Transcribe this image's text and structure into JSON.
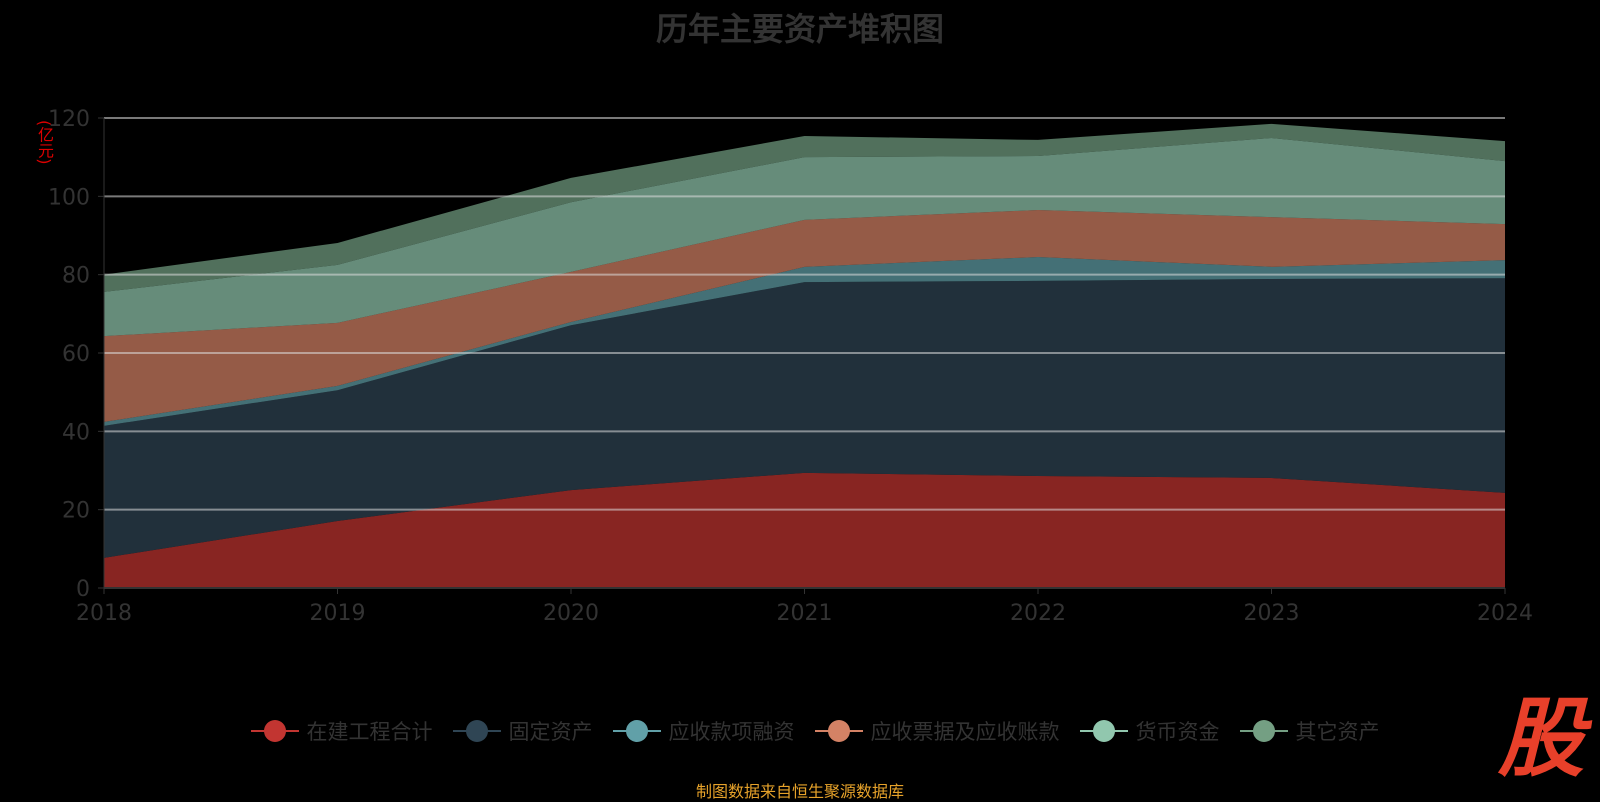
{
  "chart_data": {
    "type": "area",
    "stacked": true,
    "title": "历年主要资产堆积图",
    "ylabel": "(亿元)",
    "xlabel": "",
    "categories": [
      "2018",
      "2019",
      "2020",
      "2021",
      "2022",
      "2023",
      "2024"
    ],
    "ylim": [
      0,
      120
    ],
    "yticks": [
      "0",
      "20",
      "40",
      "60",
      "80",
      "100",
      "120"
    ],
    "grid": true,
    "legend_position": "bottom",
    "series": [
      {
        "name": "在建工程合计",
        "color": "#c23531",
        "values": [
          7.7,
          17.1,
          25.0,
          29.4,
          28.6,
          28.1,
          24.3
        ]
      },
      {
        "name": "固定资产",
        "color": "#2f4554",
        "values": [
          33.7,
          33.4,
          42.1,
          48.7,
          49.8,
          50.8,
          54.8
        ]
      },
      {
        "name": "应收款项融资",
        "color": "#61a0a8",
        "values": [
          1.0,
          1.1,
          0.8,
          3.9,
          6.1,
          3.1,
          4.6
        ]
      },
      {
        "name": "应收票据及应收账款",
        "color": "#d48265",
        "values": [
          21.9,
          16.1,
          12.8,
          12.0,
          12.0,
          12.7,
          9.2
        ]
      },
      {
        "name": "货币资金",
        "color": "#91c7ae",
        "values": [
          11.3,
          14.8,
          17.8,
          16.0,
          13.8,
          20.2,
          16.1
        ]
      },
      {
        "name": "其它资产",
        "color": "#749f83",
        "values": [
          4.4,
          5.6,
          6.2,
          5.4,
          4.1,
          3.6,
          5.1
        ]
      }
    ]
  },
  "footer": "制图数据来自恒生聚源数据库",
  "logo_text": "股"
}
